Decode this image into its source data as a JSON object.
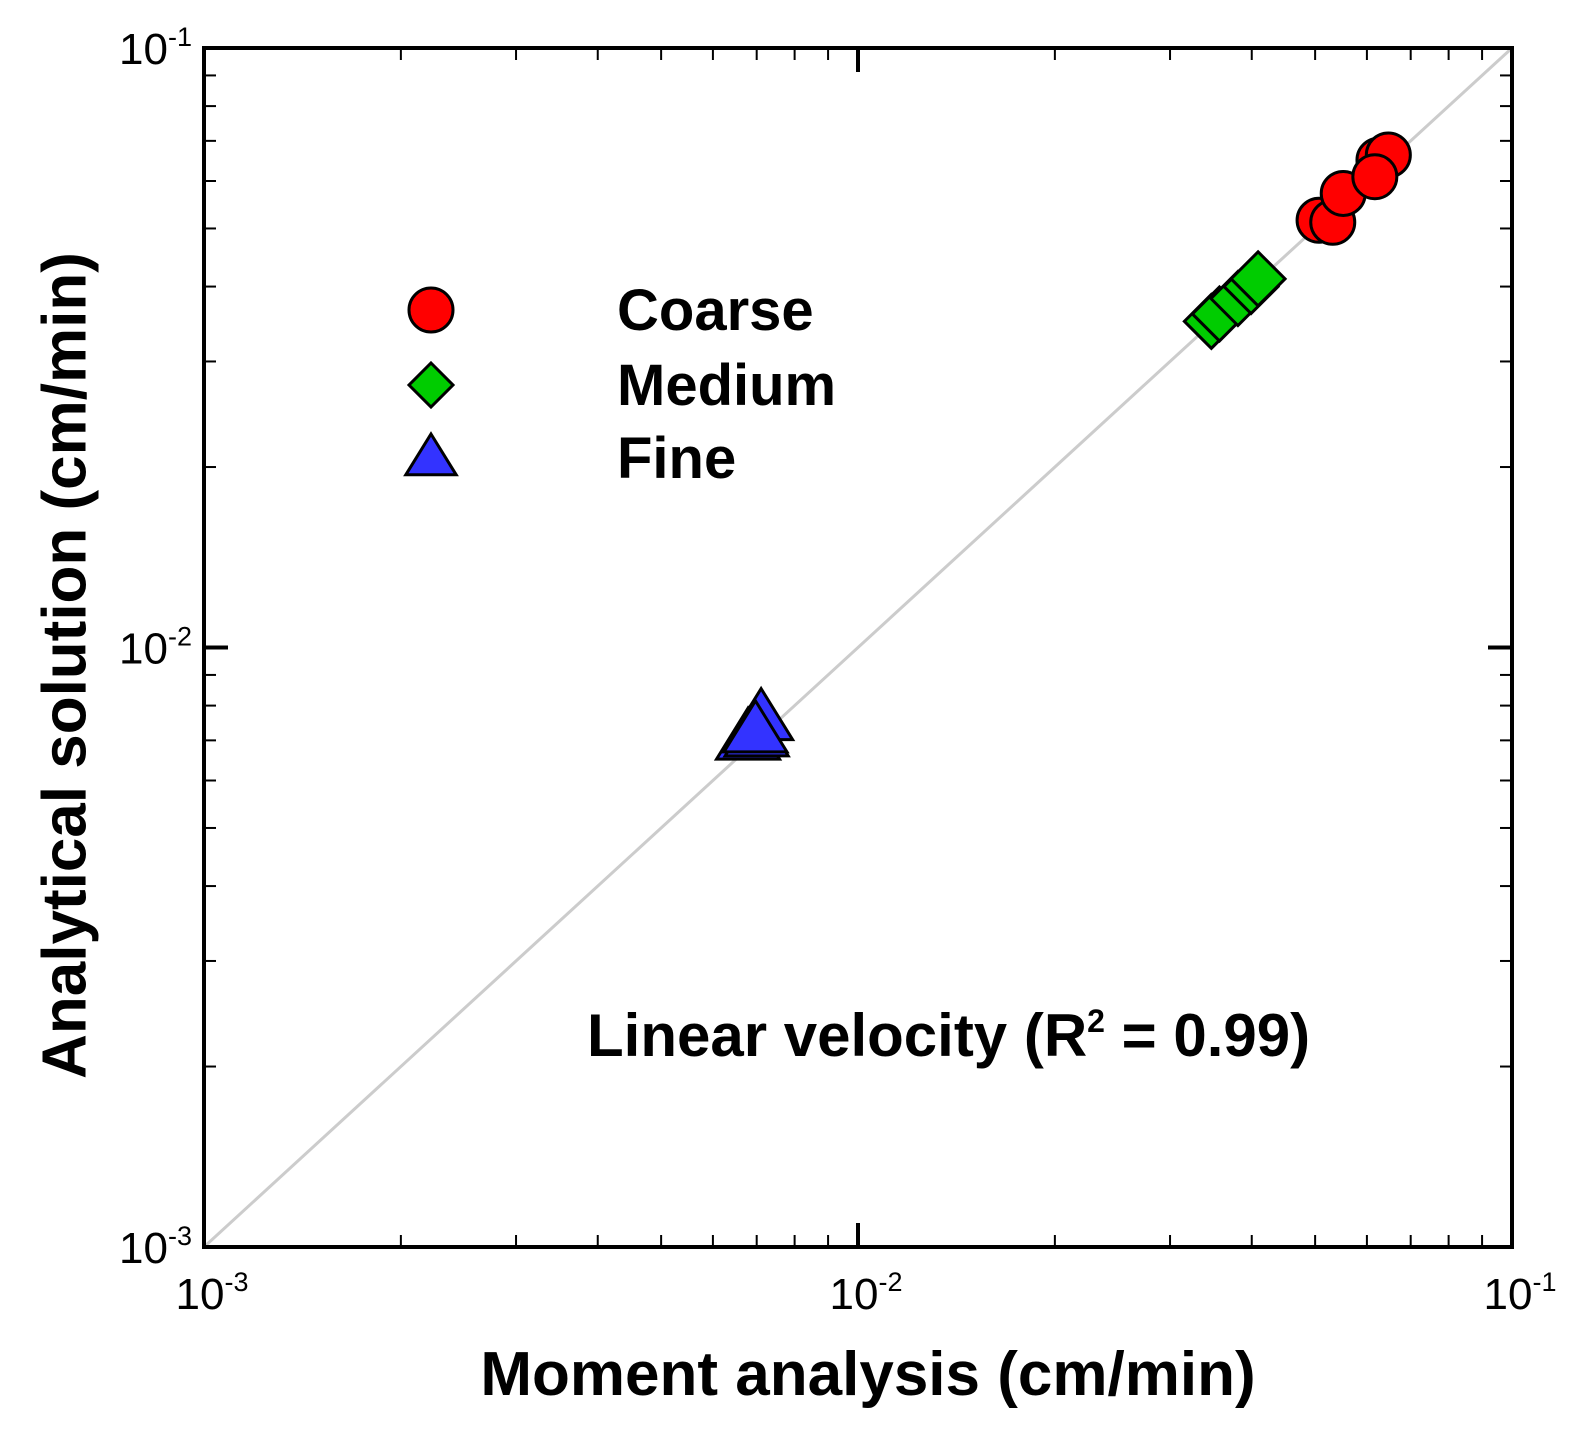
{
  "chart_data": {
    "type": "scatter",
    "title": "",
    "xlabel": "Moment analysis (cm/min)",
    "ylabel": "Analytical solution (cm/min)",
    "xscale": "log",
    "yscale": "log",
    "xlim": [
      0.001,
      0.1
    ],
    "ylim": [
      0.001,
      0.1
    ],
    "x_ticks": [
      {
        "base": "10",
        "exp": "-3"
      },
      {
        "base": "10",
        "exp": "-2"
      },
      {
        "base": "10",
        "exp": "-1"
      }
    ],
    "y_ticks": [
      {
        "base": "10",
        "exp": "-3"
      },
      {
        "base": "10",
        "exp": "-2"
      },
      {
        "base": "10",
        "exp": "-1"
      }
    ],
    "reference_line": "1:1",
    "legend_position": "upper-left",
    "series": [
      {
        "name": "Coarse",
        "marker": "circle",
        "color": "#ff0000",
        "points": [
          {
            "x": 0.0507,
            "y": 0.0516
          },
          {
            "x": 0.0532,
            "y": 0.0512
          },
          {
            "x": 0.0552,
            "y": 0.0572
          },
          {
            "x": 0.0626,
            "y": 0.065
          },
          {
            "x": 0.0647,
            "y": 0.0663
          },
          {
            "x": 0.0617,
            "y": 0.061
          }
        ]
      },
      {
        "name": "Medium",
        "marker": "diamond",
        "color": "#00cc00",
        "points": [
          {
            "x": 0.0347,
            "y": 0.035
          },
          {
            "x": 0.0357,
            "y": 0.036
          },
          {
            "x": 0.0381,
            "y": 0.0382
          },
          {
            "x": 0.0399,
            "y": 0.04
          },
          {
            "x": 0.0409,
            "y": 0.0412
          }
        ]
      },
      {
        "name": "Fine",
        "marker": "triangle",
        "color": "#3333ff",
        "points": [
          {
            "x": 0.00679,
            "y": 0.00706
          },
          {
            "x": 0.007,
            "y": 0.00715
          },
          {
            "x": 0.00711,
            "y": 0.00761
          },
          {
            "x": 0.00697,
            "y": 0.00726
          }
        ]
      }
    ],
    "annotation": {
      "text": "Linear velocity (R",
      "sup": "2",
      "tail": " = 0.99)"
    }
  }
}
